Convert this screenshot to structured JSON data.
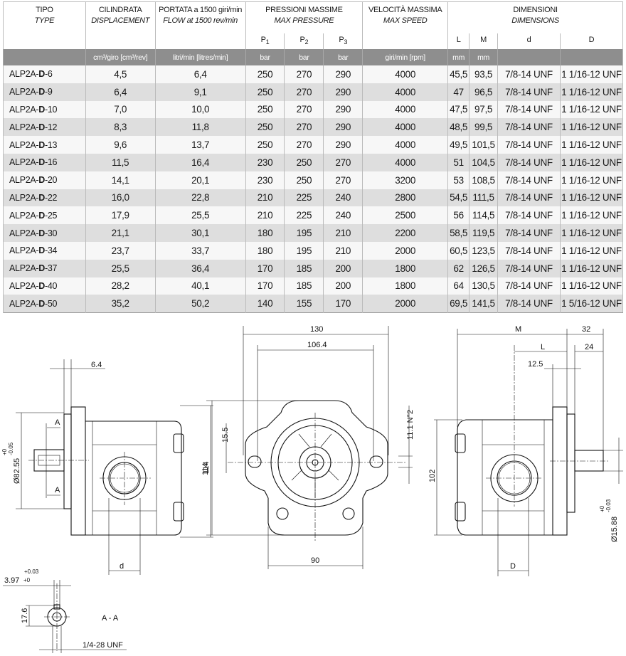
{
  "table": {
    "headers": {
      "type": {
        "it": "TIPO",
        "en": "TYPE"
      },
      "displacement": {
        "it": "CILINDRATA",
        "en": "DISPLACEMENT",
        "unit": "cm³/giro [cm³/rev]"
      },
      "flow": {
        "it": "PORTATA a 1500 giri/min",
        "en": "FLOW at 1500 rev/min",
        "unit": "litri/min [litres/min]"
      },
      "pressure": {
        "it": "PRESSIONI MASSIME",
        "en": "MAX PRESSURE",
        "p1": "P",
        "p2": "P",
        "p3": "P",
        "s1": "1",
        "s2": "2",
        "s3": "3",
        "unit": "bar"
      },
      "speed": {
        "it": "VELOCITÀ MASSIMA",
        "en": "MAX SPEED",
        "unit": "giri/min [rpm]"
      },
      "dimensions": {
        "it": "DIMENSIONI",
        "en": "DIMENSIONS",
        "L": "L",
        "M": "M",
        "d": "d",
        "D": "D",
        "unit_L": "mm",
        "unit_M": "mm"
      }
    },
    "rows": [
      {
        "prefix": "ALP2A-",
        "mid": "D",
        "suffix": "-6",
        "disp": "4,5",
        "flow": "6,4",
        "p1": "250",
        "p2": "270",
        "p3": "290",
        "speed": "4000",
        "L": "45,5",
        "M": "93,5",
        "d": "7/8-14 UNF",
        "D": "1 1/16-12 UNF"
      },
      {
        "prefix": "ALP2A-",
        "mid": "D",
        "suffix": "-9",
        "disp": "6,4",
        "flow": "9,1",
        "p1": "250",
        "p2": "270",
        "p3": "290",
        "speed": "4000",
        "L": "47",
        "M": "96,5",
        "d": "7/8-14 UNF",
        "D": "1 1/16-12 UNF"
      },
      {
        "prefix": "ALP2A-",
        "mid": "D",
        "suffix": "-10",
        "disp": "7,0",
        "flow": "10,0",
        "p1": "250",
        "p2": "270",
        "p3": "290",
        "speed": "4000",
        "L": "47,5",
        "M": "97,5",
        "d": "7/8-14 UNF",
        "D": "1 1/16-12 UNF"
      },
      {
        "prefix": "ALP2A-",
        "mid": "D",
        "suffix": "-12",
        "disp": "8,3",
        "flow": "11,8",
        "p1": "250",
        "p2": "270",
        "p3": "290",
        "speed": "4000",
        "L": "48,5",
        "M": "99,5",
        "d": "7/8-14 UNF",
        "D": "1 1/16-12 UNF"
      },
      {
        "prefix": "ALP2A-",
        "mid": "D",
        "suffix": "-13",
        "disp": "9,6",
        "flow": "13,7",
        "p1": "250",
        "p2": "270",
        "p3": "290",
        "speed": "4000",
        "L": "49,5",
        "M": "101,5",
        "d": "7/8-14 UNF",
        "D": "1 1/16-12 UNF"
      },
      {
        "prefix": "ALP2A-",
        "mid": "D",
        "suffix": "-16",
        "disp": "11,5",
        "flow": "16,4",
        "p1": "230",
        "p2": "250",
        "p3": "270",
        "speed": "4000",
        "L": "51",
        "M": "104,5",
        "d": "7/8-14 UNF",
        "D": "1 1/16-12 UNF"
      },
      {
        "prefix": "ALP2A-",
        "mid": "D",
        "suffix": "-20",
        "disp": "14,1",
        "flow": "20,1",
        "p1": "230",
        "p2": "250",
        "p3": "270",
        "speed": "3200",
        "L": "53",
        "M": "108,5",
        "d": "7/8-14 UNF",
        "D": "1 1/16-12 UNF"
      },
      {
        "prefix": "ALP2A-",
        "mid": "D",
        "suffix": "-22",
        "disp": "16,0",
        "flow": "22,8",
        "p1": "210",
        "p2": "225",
        "p3": "240",
        "speed": "2800",
        "L": "54,5",
        "M": "111,5",
        "d": "7/8-14 UNF",
        "D": "1 1/16-12 UNF"
      },
      {
        "prefix": "ALP2A-",
        "mid": "D",
        "suffix": "-25",
        "disp": "17,9",
        "flow": "25,5",
        "p1": "210",
        "p2": "225",
        "p3": "240",
        "speed": "2500",
        "L": "56",
        "M": "114,5",
        "d": "7/8-14 UNF",
        "D": "1 1/16-12 UNF"
      },
      {
        "prefix": "ALP2A-",
        "mid": "D",
        "suffix": "-30",
        "disp": "21,1",
        "flow": "30,1",
        "p1": "180",
        "p2": "195",
        "p3": "210",
        "speed": "2200",
        "L": "58,5",
        "M": "119,5",
        "d": "7/8-14 UNF",
        "D": "1 1/16-12 UNF"
      },
      {
        "prefix": "ALP2A-",
        "mid": "D",
        "suffix": "-34",
        "disp": "23,7",
        "flow": "33,7",
        "p1": "180",
        "p2": "195",
        "p3": "210",
        "speed": "2000",
        "L": "60,5",
        "M": "123,5",
        "d": "7/8-14 UNF",
        "D": "1 1/16-12 UNF"
      },
      {
        "prefix": "ALP2A-",
        "mid": "D",
        "suffix": "-37",
        "disp": "25,5",
        "flow": "36,4",
        "p1": "170",
        "p2": "185",
        "p3": "200",
        "speed": "1800",
        "L": "62",
        "M": "126,5",
        "d": "7/8-14 UNF",
        "D": "1 1/16-12 UNF"
      },
      {
        "prefix": "ALP2A-",
        "mid": "D",
        "suffix": "-40",
        "disp": "28,2",
        "flow": "40,1",
        "p1": "170",
        "p2": "185",
        "p3": "200",
        "speed": "1800",
        "L": "64",
        "M": "130,5",
        "d": "7/8-14 UNF",
        "D": "1 1/16-12 UNF"
      },
      {
        "prefix": "ALP2A-",
        "mid": "D",
        "suffix": "-50",
        "disp": "35,2",
        "flow": "50,2",
        "p1": "140",
        "p2": "155",
        "p3": "170",
        "speed": "2000",
        "L": "69,5",
        "M": "141,5",
        "d": "7/8-14 UNF",
        "D": "1 5/16-12 UNF"
      }
    ]
  },
  "drawings": {
    "left": {
      "dim_flange": "6.4",
      "dim_pilot": "Ø82.55",
      "tol_pilot_upper": "+0",
      "tol_pilot_lower": "-0.05",
      "section_mark": "A",
      "dim_port": "d",
      "dim_height": "114"
    },
    "section": {
      "dim_key": "3.97",
      "tol_key_upper": "+0.03",
      "tol_key_lower": "+0",
      "dim_shaft": "17.6",
      "label": "A - A",
      "thread": "1/4-28 UNF"
    },
    "front": {
      "dim_width": "130",
      "dim_bolt": "106.4",
      "dim_height": "114",
      "dim_slot": "15.5",
      "dim_hole": "11.1 N°2",
      "dim_base": "90"
    },
    "right": {
      "dim_M": "M",
      "dim_L": "L",
      "dim_32": "32",
      "dim_24": "24",
      "dim_12": "12.5",
      "dim_height": "102",
      "dim_port": "D",
      "dim_shaft": "Ø15.88",
      "tol_shaft_upper": "+0",
      "tol_shaft_lower": "-0.03"
    }
  }
}
